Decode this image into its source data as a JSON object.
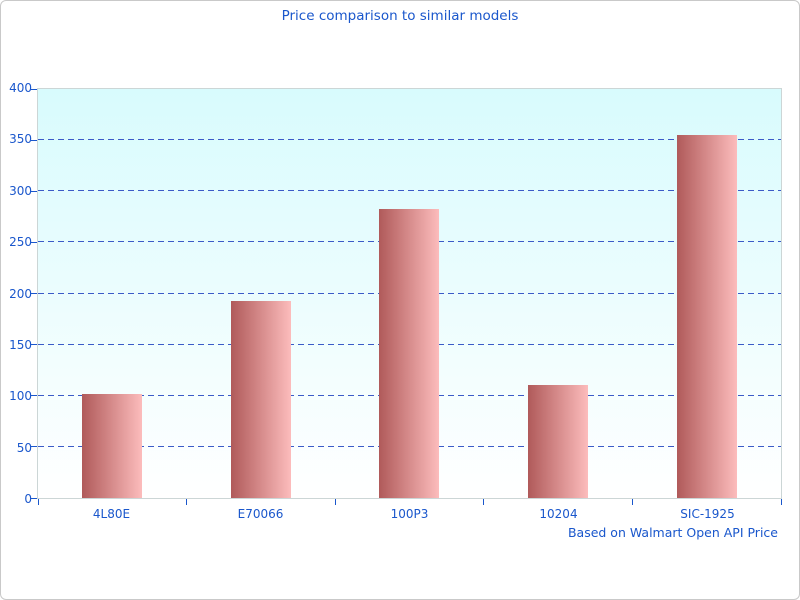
{
  "window": {
    "background": "#ffffff",
    "frame_border_color": "#c9c9c9"
  },
  "chart_data": {
    "type": "bar",
    "title": "Price comparison to similar models",
    "caption": "Based on Walmart Open API Price",
    "categories": [
      "4L80E",
      "E70066",
      "100P3",
      "10204",
      "SIC-1925"
    ],
    "values": [
      102,
      193,
      283,
      111,
      355
    ],
    "xlabel": "",
    "ylabel": "",
    "ylim": [
      0,
      400
    ],
    "yticks": [
      0,
      50,
      100,
      150,
      200,
      250,
      300,
      350,
      400
    ],
    "grid": "horizontal-dashed",
    "legend_position": "none",
    "colors": {
      "title_text": "#1a57cc",
      "axis_text": "#1a57cc",
      "grid_line": "#3b5bc8",
      "bar_gradient_left": "#b05a5a",
      "bar_gradient_right": "#fcbcbc",
      "plot_bg_top": "#d8fbfd",
      "plot_bg_bottom": "#ffffff",
      "plot_border": "#ccd6d6"
    }
  }
}
